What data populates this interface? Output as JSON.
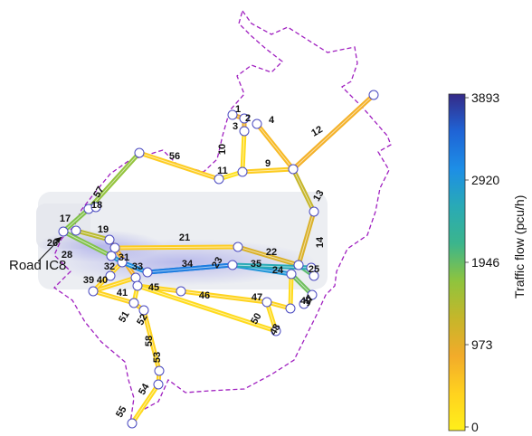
{
  "road_callout": {
    "text": "Road IC8",
    "link": 26
  },
  "colorbar": {
    "title": "Traffic flow (pcu/h)",
    "ticks": [
      "3893",
      "2920",
      "1946",
      "973",
      "0"
    ],
    "max": 3893,
    "colors": [
      "#352a87",
      "#1f64d6",
      "#1d8ee6",
      "#29aab6",
      "#3bb58c",
      "#8fc43d",
      "#c6b62a",
      "#f2ab2a",
      "#ffd21f",
      "#ffef1a"
    ]
  },
  "chart_data": {
    "type": "network-map",
    "legend_title": "Traffic flow (pcu/h)",
    "scale_range": [
      0,
      3893
    ],
    "highlighted_link": 26,
    "links": [
      {
        "id": 1,
        "flow": 900
      },
      {
        "id": 2,
        "flow": 900
      },
      {
        "id": 3,
        "flow": 900
      },
      {
        "id": 4,
        "flow": 700
      },
      {
        "id": 9,
        "flow": 500
      },
      {
        "id": 10,
        "flow": 300
      },
      {
        "id": 11,
        "flow": 200
      },
      {
        "id": 12,
        "flow": 800
      },
      {
        "id": 13,
        "flow": 1300
      },
      {
        "id": 14,
        "flow": 1100
      },
      {
        "id": 17,
        "flow": 1800
      },
      {
        "id": 18,
        "flow": 500
      },
      {
        "id": 19,
        "flow": 1400
      },
      {
        "id": 21,
        "flow": 500
      },
      {
        "id": 22,
        "flow": 1100
      },
      {
        "id": 23,
        "flow": 3100
      },
      {
        "id": 24,
        "flow": 2900
      },
      {
        "id": 25,
        "flow": 2000
      },
      {
        "id": 26,
        "flow": 1800
      },
      {
        "id": 28,
        "flow": 2800
      },
      {
        "id": 31,
        "flow": 800
      },
      {
        "id": 32,
        "flow": 3000
      },
      {
        "id": 33,
        "flow": 1900
      },
      {
        "id": 34,
        "flow": 3200
      },
      {
        "id": 35,
        "flow": 2600
      },
      {
        "id": 37,
        "flow": 1900
      },
      {
        "id": 39,
        "flow": 400
      },
      {
        "id": 40,
        "flow": 400
      },
      {
        "id": 41,
        "flow": 400
      },
      {
        "id": 45,
        "flow": 400
      },
      {
        "id": 46,
        "flow": 400
      },
      {
        "id": 47,
        "flow": 400
      },
      {
        "id": 48,
        "flow": 300
      },
      {
        "id": 49,
        "flow": 300
      },
      {
        "id": 50,
        "flow": 300
      },
      {
        "id": 51,
        "flow": 300
      },
      {
        "id": 52,
        "flow": 400
      },
      {
        "id": 53,
        "flow": 400
      },
      {
        "id": 54,
        "flow": 400
      },
      {
        "id": 55,
        "flow": 300
      },
      {
        "id": 56,
        "flow": 500
      },
      {
        "id": 57,
        "flow": 1700
      },
      {
        "id": 58,
        "flow": 400
      }
    ]
  }
}
